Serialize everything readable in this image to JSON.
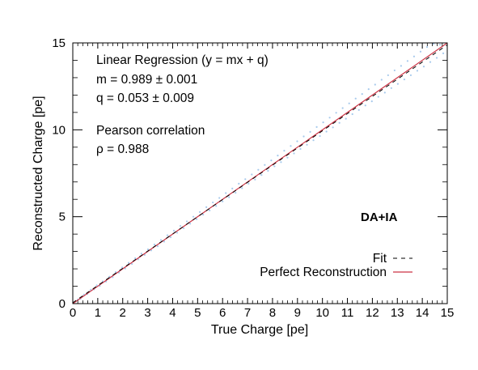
{
  "chart_data": {
    "type": "scatter",
    "xlabel": "True Charge [pe]",
    "ylabel": "Reconstructed Charge [pe]",
    "xlim": [
      0,
      15
    ],
    "ylim": [
      0,
      15
    ],
    "x_ticks": [
      "0",
      "1",
      "2",
      "3",
      "4",
      "5",
      "6",
      "7",
      "8",
      "9",
      "10",
      "11",
      "12",
      "13",
      "14",
      "15"
    ],
    "y_ticks": [
      "0",
      "5",
      "10",
      "15"
    ],
    "grid": false,
    "tag": "DA+IA",
    "annotations": [
      "Linear Regression (y = mx + q)",
      "m = 0.989 ± 0.001",
      "q = 0.053 ± 0.009",
      "Pearson correlation",
      "ρ = 0.988"
    ],
    "legend": {
      "placement": "bottom-right",
      "entries": [
        {
          "label": "Fit",
          "style": "dashed",
          "color": "#000000"
        },
        {
          "label": "Perfect Reconstruction",
          "style": "solid",
          "color": "#cc3344"
        }
      ]
    },
    "fit": {
      "m": 0.989,
      "q": 0.053,
      "x_range": [
        0,
        15
      ]
    },
    "perfect": {
      "x": [
        0,
        15
      ],
      "y": [
        0,
        15
      ]
    },
    "scatter_color": "#8ab8e6",
    "scatter_points": [
      [
        0.2,
        0.24
      ],
      [
        0.31,
        0.28
      ],
      [
        0.45,
        0.52
      ],
      [
        0.58,
        0.55
      ],
      [
        0.72,
        0.8
      ],
      [
        0.85,
        0.82
      ],
      [
        0.96,
        1.05
      ],
      [
        1.08,
        1.02
      ],
      [
        1.2,
        1.28
      ],
      [
        1.33,
        1.27
      ],
      [
        1.47,
        1.55
      ],
      [
        1.6,
        1.52
      ],
      [
        1.72,
        1.81
      ],
      [
        1.85,
        1.78
      ],
      [
        1.98,
        2.08
      ],
      [
        2.1,
        2.02
      ],
      [
        2.24,
        2.35
      ],
      [
        2.37,
        2.28
      ],
      [
        2.5,
        2.61
      ],
      [
        2.62,
        2.55
      ],
      [
        2.75,
        2.88
      ],
      [
        2.88,
        2.8
      ],
      [
        3.01,
        3.12
      ],
      [
        3.14,
        3.06
      ],
      [
        3.27,
        3.4
      ],
      [
        3.4,
        3.3
      ],
      [
        3.53,
        3.66
      ],
      [
        3.66,
        3.57
      ],
      [
        3.79,
        3.93
      ],
      [
        3.92,
        3.82
      ],
      [
        4.05,
        4.2
      ],
      [
        4.18,
        4.08
      ],
      [
        4.31,
        4.47
      ],
      [
        4.44,
        4.34
      ],
      [
        4.57,
        4.73
      ],
      [
        4.7,
        4.6
      ],
      [
        4.83,
        5.0
      ],
      [
        4.96,
        4.86
      ],
      [
        5.09,
        5.27
      ],
      [
        5.22,
        5.12
      ],
      [
        5.35,
        5.55
      ],
      [
        5.48,
        5.36
      ],
      [
        5.61,
        5.82
      ],
      [
        5.74,
        5.62
      ],
      [
        5.87,
        6.08
      ],
      [
        6.0,
        5.88
      ],
      [
        6.13,
        6.36
      ],
      [
        6.26,
        6.12
      ],
      [
        6.39,
        6.62
      ],
      [
        6.52,
        6.38
      ],
      [
        6.65,
        6.9
      ],
      [
        6.78,
        6.64
      ],
      [
        6.91,
        7.16
      ],
      [
        7.04,
        6.9
      ],
      [
        7.17,
        7.43
      ],
      [
        7.3,
        7.14
      ],
      [
        7.43,
        7.7
      ],
      [
        7.56,
        7.4
      ],
      [
        7.69,
        7.98
      ],
      [
        7.82,
        7.64
      ],
      [
        7.95,
        8.24
      ],
      [
        8.08,
        7.9
      ],
      [
        8.21,
        8.52
      ],
      [
        8.34,
        8.14
      ],
      [
        8.47,
        8.8
      ],
      [
        8.6,
        8.4
      ],
      [
        8.73,
        9.07
      ],
      [
        8.86,
        8.64
      ],
      [
        8.99,
        9.34
      ],
      [
        9.12,
        8.9
      ],
      [
        9.25,
        9.62
      ],
      [
        9.38,
        9.14
      ],
      [
        9.51,
        9.88
      ],
      [
        9.64,
        9.4
      ],
      [
        9.77,
        10.16
      ],
      [
        9.9,
        9.64
      ],
      [
        10.03,
        10.43
      ],
      [
        10.16,
        9.9
      ],
      [
        10.29,
        10.7
      ],
      [
        10.42,
        10.14
      ],
      [
        10.55,
        10.98
      ],
      [
        10.68,
        10.4
      ],
      [
        10.81,
        11.25
      ],
      [
        10.94,
        10.64
      ],
      [
        11.07,
        11.52
      ],
      [
        11.2,
        10.9
      ],
      [
        11.33,
        11.8
      ],
      [
        11.46,
        11.14
      ],
      [
        11.59,
        12.06
      ],
      [
        11.72,
        11.4
      ],
      [
        11.85,
        12.34
      ],
      [
        11.98,
        11.64
      ],
      [
        12.11,
        12.6
      ],
      [
        12.24,
        11.9
      ],
      [
        12.37,
        12.88
      ],
      [
        12.5,
        12.14
      ],
      [
        12.63,
        13.14
      ],
      [
        12.76,
        12.4
      ],
      [
        12.89,
        13.42
      ],
      [
        13.02,
        12.64
      ],
      [
        13.15,
        13.68
      ],
      [
        13.28,
        12.9
      ],
      [
        13.41,
        13.96
      ],
      [
        13.54,
        13.14
      ],
      [
        13.67,
        14.22
      ],
      [
        13.8,
        13.4
      ],
      [
        13.93,
        14.5
      ],
      [
        14.06,
        13.64
      ],
      [
        14.19,
        14.76
      ],
      [
        14.32,
        13.9
      ],
      [
        14.45,
        14.95
      ],
      [
        14.58,
        14.14
      ],
      [
        14.71,
        14.9
      ],
      [
        14.84,
        14.4
      ]
    ]
  }
}
